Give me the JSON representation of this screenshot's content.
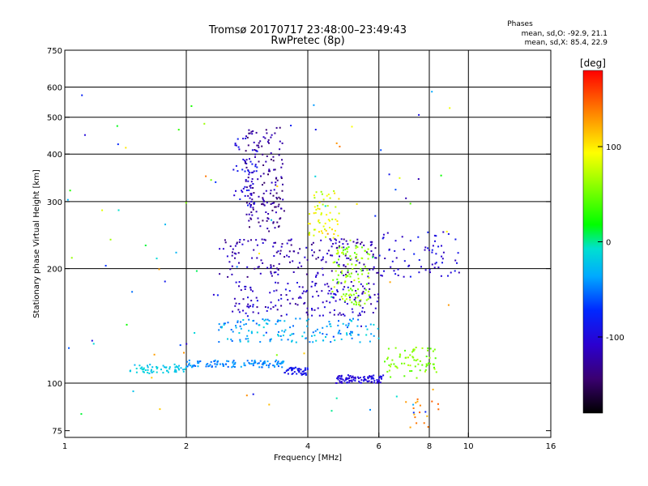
{
  "chart_data": {
    "type": "scatter",
    "title_line1": "Tromsø 20170717 23:48:00–23:49:43",
    "title_line2": "RwPretec (8p)",
    "xlabel": "Frequency [MHz]",
    "ylabel": "Stationary phase Virtual Height [km]",
    "x_scale": "log",
    "y_scale": "log",
    "xlim": [
      1,
      16
    ],
    "ylim": [
      72,
      750
    ],
    "x_ticks": [
      {
        "value": 1,
        "label": "1"
      },
      {
        "value": 2,
        "label": "2"
      },
      {
        "value": 4,
        "label": "4"
      },
      {
        "value": 6,
        "label": "6"
      },
      {
        "value": 8,
        "label": "8"
      },
      {
        "value": 10,
        "label": "10"
      },
      {
        "value": 16,
        "label": "16"
      }
    ],
    "x_gridlines": [
      2,
      4,
      6,
      8,
      10
    ],
    "y_ticks": [
      {
        "value": 75,
        "label": "75"
      },
      {
        "value": 100,
        "label": "100"
      },
      {
        "value": 200,
        "label": "200"
      },
      {
        "value": 300,
        "label": "300"
      },
      {
        "value": 400,
        "label": "400"
      },
      {
        "value": 500,
        "label": "500"
      },
      {
        "value": 600,
        "label": "600"
      },
      {
        "value": 750,
        "label": "750"
      }
    ],
    "y_gridlines": [
      100,
      200,
      300,
      400,
      500,
      600
    ],
    "grid": true,
    "stats": {
      "heading": "Phases",
      "line_o": "mean, sd,O: -92.9, 21.1",
      "line_x": "mean, sd,X:  85.4, 22.9"
    },
    "colorbar": {
      "label": "[deg]",
      "range": [
        -180,
        180
      ],
      "ticks": [
        {
          "value": 100,
          "label": "100"
        },
        {
          "value": 0,
          "label": "0"
        },
        {
          "value": -100,
          "label": "-100"
        }
      ]
    },
    "clusters": [
      {
        "f": [
          1.45,
          2.0
        ],
        "h": [
          106,
          112
        ],
        "phase": [
          -30,
          -10
        ],
        "n": 60
      },
      {
        "f": [
          2.0,
          3.5
        ],
        "h": [
          110,
          115
        ],
        "phase": [
          -60,
          -30
        ],
        "n": 110
      },
      {
        "f": [
          3.5,
          4.0
        ],
        "h": [
          105,
          110
        ],
        "phase": [
          -100,
          -80
        ],
        "n": 45
      },
      {
        "f": [
          4.7,
          6.2
        ],
        "h": [
          100,
          105
        ],
        "phase": [
          -110,
          -90
        ],
        "n": 90
      },
      {
        "f": [
          6.2,
          8.4
        ],
        "h": [
          103,
          125
        ],
        "phase": [
          40,
          70
        ],
        "n": 70
      },
      {
        "f": [
          2.4,
          6.0
        ],
        "h": [
          128,
          148
        ],
        "phase": [
          -60,
          -10
        ],
        "n": 150
      },
      {
        "f": [
          2.6,
          6.0
        ],
        "h": [
          150,
          185
        ],
        "phase": [
          -130,
          -90
        ],
        "n": 170
      },
      {
        "f": [
          2.4,
          6.0
        ],
        "h": [
          190,
          240
        ],
        "phase": [
          -140,
          -100
        ],
        "n": 180
      },
      {
        "f": [
          4.6,
          5.7
        ],
        "h": [
          160,
          230
        ],
        "phase": [
          40,
          80
        ],
        "n": 110
      },
      {
        "f": [
          2.8,
          3.5
        ],
        "h": [
          250,
          470
        ],
        "phase": [
          -150,
          -110
        ],
        "n": 160
      },
      {
        "f": [
          2.6,
          3.0
        ],
        "h": [
          290,
          440
        ],
        "phase": [
          -110,
          -80
        ],
        "n": 50
      },
      {
        "f": [
          4.0,
          4.8
        ],
        "h": [
          240,
          320
        ],
        "phase": [
          60,
          110
        ],
        "n": 60
      },
      {
        "f": [
          6.0,
          9.5
        ],
        "h": [
          190,
          250
        ],
        "phase": [
          -120,
          -80
        ],
        "n": 70
      },
      {
        "f": [
          7.0,
          8.5
        ],
        "h": [
          75,
          98
        ],
        "phase": [
          120,
          150
        ],
        "n": 18
      },
      {
        "f": [
          1.0,
          9.0
        ],
        "h": [
          80,
          600
        ],
        "phase": [
          -120,
          140
        ],
        "n": 90
      }
    ]
  }
}
